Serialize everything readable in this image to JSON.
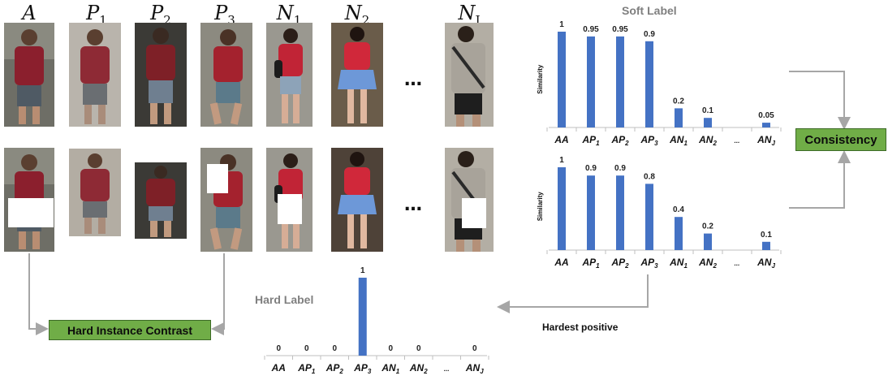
{
  "headers": {
    "A": {
      "main": "A",
      "sub": ""
    },
    "P1": {
      "main": "P",
      "sub": "1"
    },
    "P2": {
      "main": "P",
      "sub": "2"
    },
    "P3": {
      "main": "P",
      "sub": "3"
    },
    "N1": {
      "main": "N",
      "sub": "1"
    },
    "N2": {
      "main": "N",
      "sub": "2"
    },
    "NJ": {
      "main": "N",
      "sub": "J"
    }
  },
  "ellipsis": "…",
  "labels": {
    "soft_label": "Soft Label",
    "hard_label": "Hard Label",
    "consistency": "Consistency",
    "hard_instance_contrast": "Hard Instance Contrast",
    "hardest_positive": "Hardest positive"
  },
  "colors": {
    "bar": "#4472c4",
    "green": "#70ad47",
    "title_gray": "#7f7f7f",
    "arrow_gray": "#a6a6a6"
  },
  "chart_data": [
    {
      "id": "soft-top",
      "type": "bar",
      "title": "Soft Label",
      "ylabel": "Similarity",
      "categories": [
        {
          "main": "AA",
          "sub": ""
        },
        {
          "main": "AP",
          "sub": "1"
        },
        {
          "main": "AP",
          "sub": "2"
        },
        {
          "main": "AP",
          "sub": "3"
        },
        {
          "main": "AN",
          "sub": "1"
        },
        {
          "main": "AN",
          "sub": "2"
        },
        {
          "main": "...",
          "sub": ""
        },
        {
          "main": "AN",
          "sub": "J"
        }
      ],
      "values": [
        1,
        0.95,
        0.95,
        0.9,
        0.2,
        0.1,
        null,
        0.05
      ],
      "value_labels": [
        "1",
        "0.95",
        "0.95",
        "0.9",
        "0.2",
        "0.1",
        "",
        "0.05"
      ],
      "ylim": [
        0,
        1
      ]
    },
    {
      "id": "soft-bottom",
      "type": "bar",
      "ylabel": "Similarity",
      "categories": [
        {
          "main": "AA",
          "sub": ""
        },
        {
          "main": "AP",
          "sub": "1"
        },
        {
          "main": "AP",
          "sub": "2"
        },
        {
          "main": "AP",
          "sub": "3"
        },
        {
          "main": "AN",
          "sub": "1"
        },
        {
          "main": "AN",
          "sub": "2"
        },
        {
          "main": "...",
          "sub": ""
        },
        {
          "main": "AN",
          "sub": "J"
        }
      ],
      "values": [
        1,
        0.9,
        0.9,
        0.8,
        0.4,
        0.2,
        null,
        0.1
      ],
      "value_labels": [
        "1",
        "0.9",
        "0.9",
        "0.8",
        "0.4",
        "0.2",
        "",
        "0.1"
      ],
      "ylim": [
        0,
        1
      ]
    },
    {
      "id": "hard",
      "type": "bar",
      "title": "Hard Label",
      "categories": [
        {
          "main": "AA",
          "sub": ""
        },
        {
          "main": "AP",
          "sub": "1"
        },
        {
          "main": "AP",
          "sub": "2"
        },
        {
          "main": "AP",
          "sub": "3"
        },
        {
          "main": "AN",
          "sub": "1"
        },
        {
          "main": "AN",
          "sub": "2"
        },
        {
          "main": "...",
          "sub": ""
        },
        {
          "main": "AN",
          "sub": "J"
        }
      ],
      "values": [
        0,
        0,
        0,
        1,
        0,
        0,
        null,
        0
      ],
      "value_labels": [
        "0",
        "0",
        "0",
        "1",
        "0",
        "0",
        "",
        "0"
      ],
      "ylim": [
        0,
        1
      ]
    }
  ]
}
